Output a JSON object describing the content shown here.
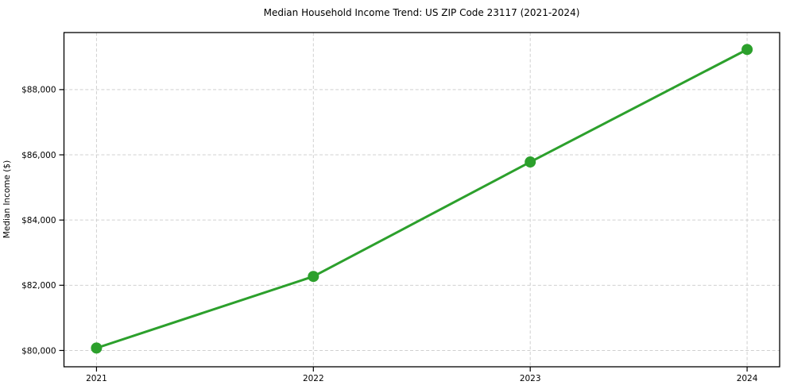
{
  "figure": {
    "title": "Median Household Income Trend: US ZIP Code 23117 (2021-2024)",
    "ylabel": "Median Income ($)"
  },
  "chart_data": {
    "type": "line",
    "title": "Median Household Income Trend: US ZIP Code 23117 (2021-2024)",
    "xlabel": "",
    "ylabel": "Median Income ($)",
    "x": [
      2021,
      2022,
      2023,
      2024
    ],
    "x_tick_labels": [
      "2021",
      "2022",
      "2023",
      "2024"
    ],
    "series": [
      {
        "name": "Median Household Income",
        "values": [
          80075,
          82270,
          85780,
          89230
        ],
        "color": "#2ca02c",
        "marker": "circle",
        "line_width": 3,
        "marker_radius": 7
      }
    ],
    "xlim": [
      2020.85,
      2024.15
    ],
    "ylim": [
      79500,
      89750
    ],
    "yticks": {
      "values": [
        80000,
        82000,
        84000,
        86000,
        88000
      ],
      "labels": [
        "$80,000",
        "$82,000",
        "$84,000",
        "$86,000",
        "$88,000"
      ]
    },
    "grid": {
      "show": true,
      "style": "dashed",
      "color": "#d0d0d0"
    },
    "legend": {
      "show": false
    },
    "background": "#ffffff",
    "spine_color": "#000000",
    "tick_color": "#000000",
    "tick_label_color": "#000000"
  }
}
